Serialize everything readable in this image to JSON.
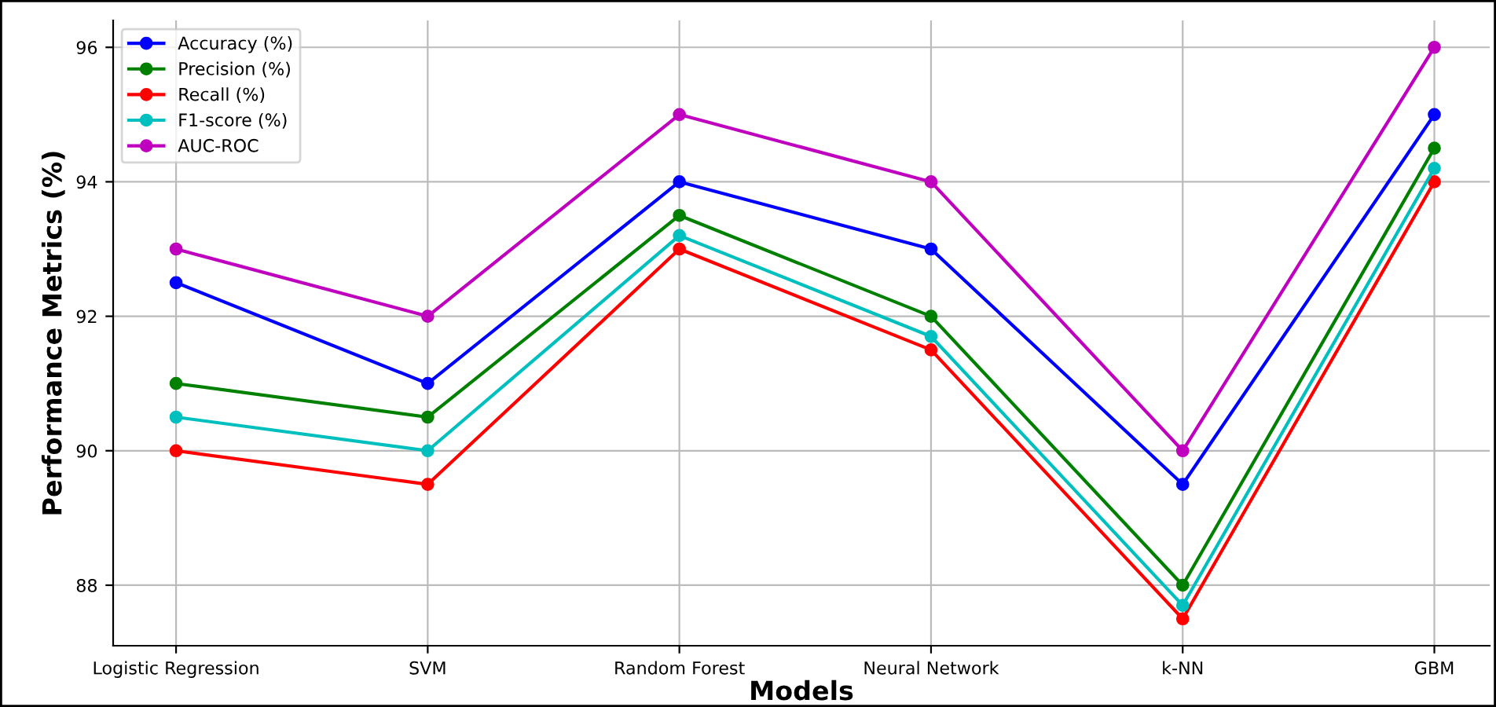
{
  "chart_data": {
    "type": "line",
    "xlabel": "Models",
    "ylabel": "Performance Metrics (%)",
    "categories": [
      "Logistic Regression",
      "SVM",
      "Random Forest",
      "Neural Network",
      "k-NN",
      "GBM"
    ],
    "series": [
      {
        "name": "Accuracy (%)",
        "color": "#0000ff",
        "values": [
          92.5,
          91,
          94,
          93,
          89.5,
          95
        ]
      },
      {
        "name": "Precision (%)",
        "color": "#008000",
        "values": [
          91,
          90.5,
          93.5,
          92,
          88,
          94.5
        ]
      },
      {
        "name": "Recall (%)",
        "color": "#ff0000",
        "values": [
          90,
          89.5,
          93,
          91.5,
          87.5,
          94
        ]
      },
      {
        "name": "F1-score (%)",
        "color": "#00bfbf",
        "values": [
          90.5,
          90,
          93.2,
          91.7,
          87.7,
          94.2
        ]
      },
      {
        "name": "AUC-ROC",
        "color": "#bf00bf",
        "values": [
          93,
          92,
          95,
          94,
          90,
          96
        ]
      }
    ],
    "ylim": [
      87.1,
      96.4
    ],
    "yticks": [
      88,
      90,
      92,
      94,
      96
    ],
    "grid": true,
    "legend": "top left",
    "marker": "circle",
    "line_style": "solid"
  }
}
